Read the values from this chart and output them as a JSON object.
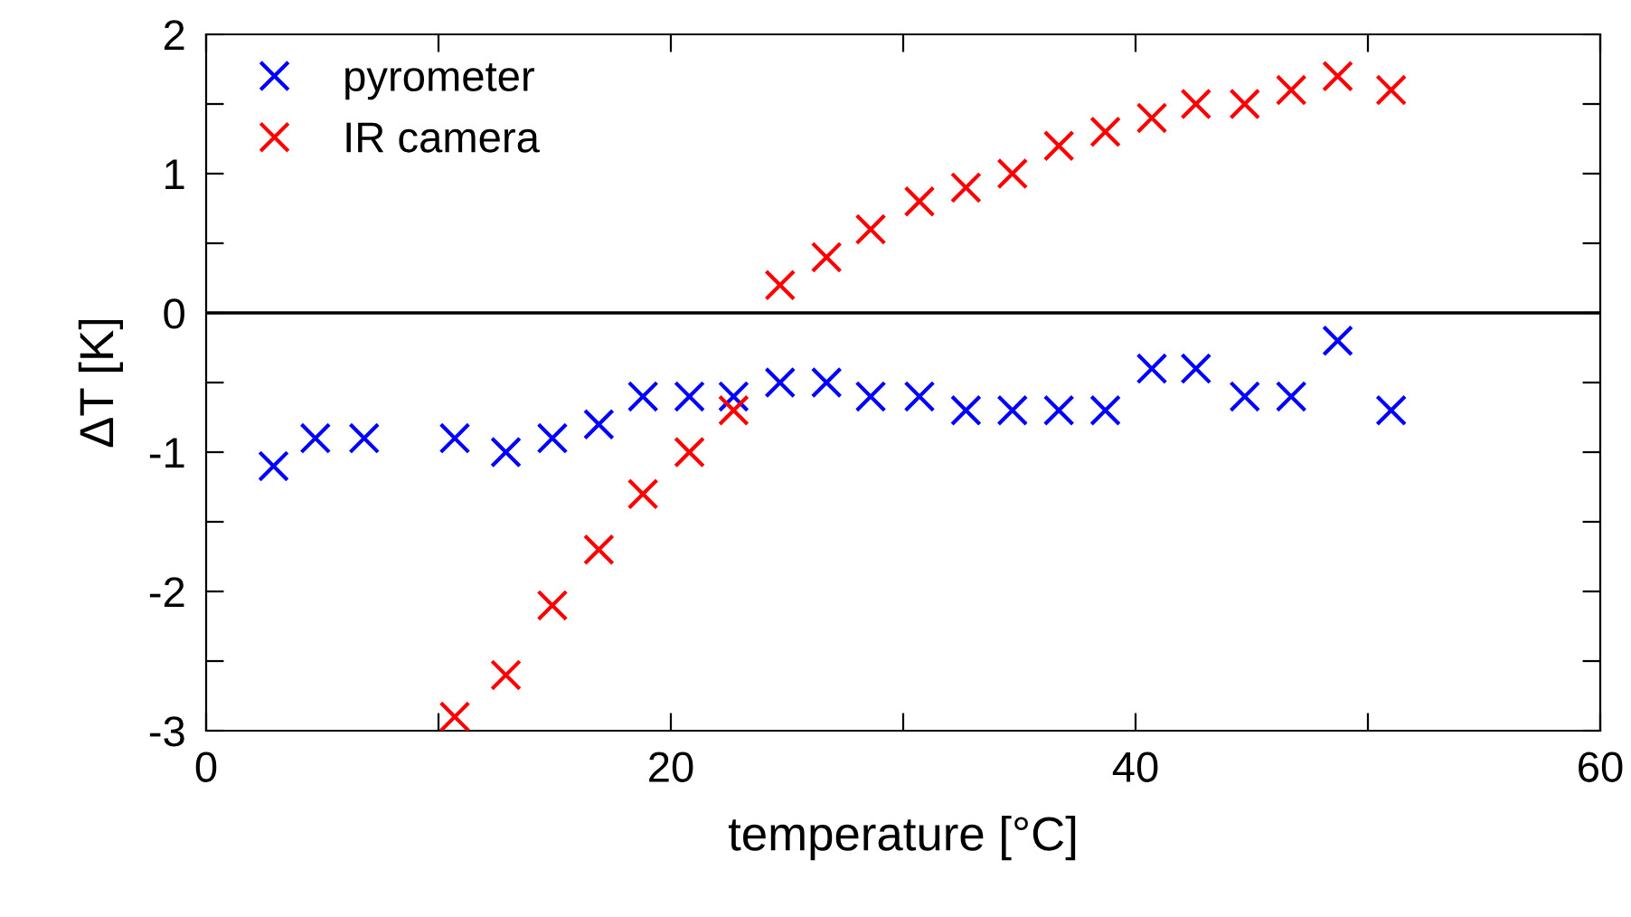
{
  "chart_data": {
    "type": "scatter",
    "xlabel": "temperature [°C]",
    "ylabel": "ΔT [K]",
    "xlim": [
      0,
      60
    ],
    "ylim": [
      -3,
      2
    ],
    "xticks": [
      0,
      {
        "value": 10,
        "label": null
      },
      20,
      {
        "value": 30,
        "label": null
      },
      40,
      {
        "value": 50,
        "label": null
      },
      60
    ],
    "yticks": [
      -3,
      {
        "value": -2.5,
        "label": null
      },
      -2,
      {
        "value": -1.5,
        "label": null
      },
      -1,
      {
        "value": -0.5,
        "label": null
      },
      0,
      {
        "value": 0.5,
        "label": null
      },
      1,
      {
        "value": 1.5,
        "label": null
      },
      2
    ],
    "marker": "cross",
    "legend": "top left",
    "grid": false,
    "ref_lines": [
      {
        "axis": "y",
        "value": 0,
        "label": null,
        "color": "#000000"
      }
    ],
    "series": [
      {
        "name": "pyrometer",
        "color": "#0000ff",
        "x": [
          2.9,
          4.7,
          6.8,
          10.7,
          12.9,
          14.9,
          16.9,
          18.8,
          20.8,
          22.7,
          24.7,
          26.7,
          28.6,
          30.7,
          32.7,
          34.7,
          36.7,
          38.7,
          40.7,
          42.6,
          44.7,
          46.7,
          48.7,
          51.0
        ],
        "values": [
          -1.1,
          -0.9,
          -0.9,
          -0.9,
          -1.0,
          -0.9,
          -0.8,
          -0.6,
          -0.6,
          -0.6,
          -0.5,
          -0.5,
          -0.6,
          -0.6,
          -0.7,
          -0.7,
          -0.7,
          -0.7,
          -0.4,
          -0.4,
          -0.6,
          -0.6,
          -0.2,
          -0.7
        ]
      },
      {
        "name": "IR camera",
        "color": "#ff0000",
        "x": [
          10.7,
          12.9,
          14.9,
          16.9,
          18.8,
          20.8,
          22.7,
          24.7,
          26.7,
          28.6,
          30.7,
          32.7,
          34.7,
          36.7,
          38.7,
          40.7,
          42.6,
          44.7,
          46.7,
          48.7,
          51.0
        ],
        "values": [
          -2.9,
          -2.6,
          -2.1,
          -1.7,
          -1.3,
          -1.0,
          -0.7,
          0.2,
          0.4,
          0.6,
          0.8,
          0.9,
          1.0,
          1.2,
          1.3,
          1.4,
          1.5,
          1.5,
          1.6,
          1.7,
          1.6
        ]
      }
    ]
  }
}
